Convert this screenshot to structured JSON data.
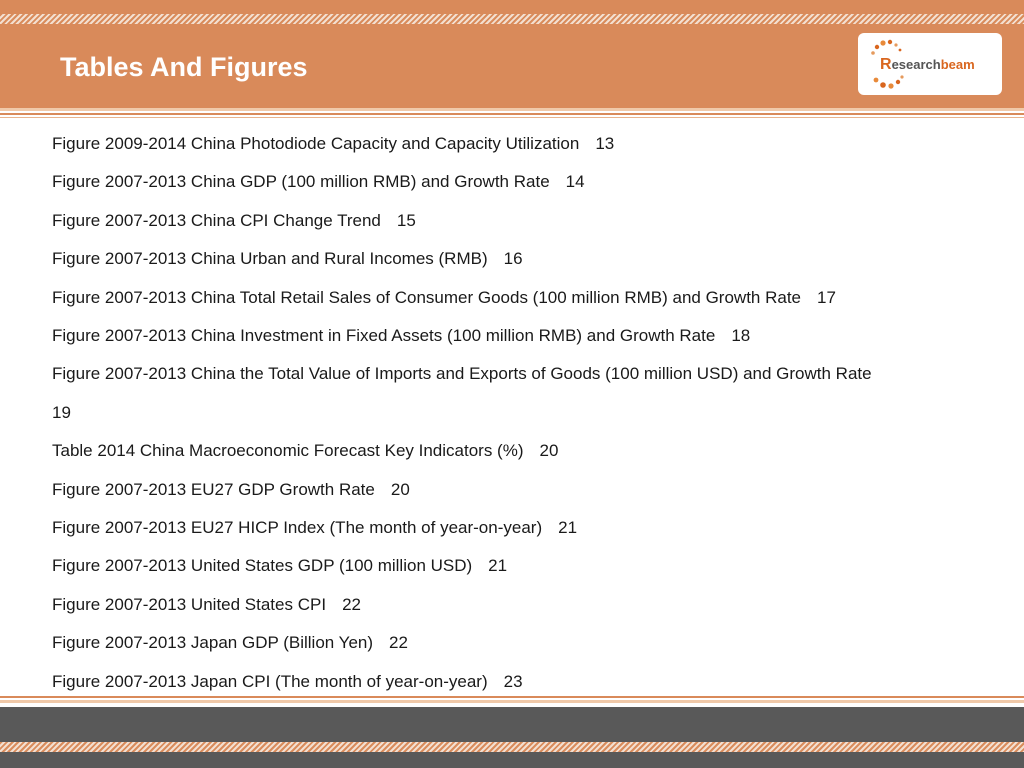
{
  "slide": {
    "title": "Tables And Figures",
    "logo": {
      "text": "Researchbeam",
      "icon": "researchbeam-logo-icon"
    },
    "colors": {
      "header": "#d98a5a",
      "footer": "#595959",
      "logo_accent": "#d9661f"
    }
  },
  "entries": [
    {
      "text": "Figure 2009-2014 China Photodiode Capacity and Capacity Utilization",
      "page": "13"
    },
    {
      "text": "Figure 2007-2013 China GDP (100 million RMB) and Growth Rate",
      "page": "14"
    },
    {
      "text": "Figure 2007-2013 China CPI Change Trend",
      "page": "15"
    },
    {
      "text": "Figure 2007-2013 China Urban and Rural Incomes (RMB)",
      "page": "16"
    },
    {
      "text": "Figure 2007-2013 China Total Retail Sales of Consumer Goods (100 million RMB) and Growth Rate",
      "page": "17"
    },
    {
      "text": "Figure 2007-2013 China Investment in Fixed Assets (100 million RMB) and Growth Rate",
      "page": "18"
    },
    {
      "text": "Figure 2007-2013 China the Total Value of Imports and Exports of Goods (100 million USD) and Growth Rate",
      "page": "19"
    },
    {
      "text": "Table 2014 China Macroeconomic Forecast Key Indicators (%)",
      "page": "20"
    },
    {
      "text": "Figure 2007-2013 EU27 GDP Growth Rate",
      "page": "20"
    },
    {
      "text": "Figure 2007-2013 EU27 HICP Index (The month of year-on-year)",
      "page": "21"
    },
    {
      "text": "Figure 2007-2013 United States GDP (100 million USD)",
      "page": "21"
    },
    {
      "text": "Figure 2007-2013 United States CPI",
      "page": "22"
    },
    {
      "text": "Figure 2007-2013 Japan GDP (Billion Yen)",
      "page": "22"
    },
    {
      "text": "Figure 2007-2013 Japan CPI (The month of year-on-year)",
      "page": "23"
    }
  ]
}
